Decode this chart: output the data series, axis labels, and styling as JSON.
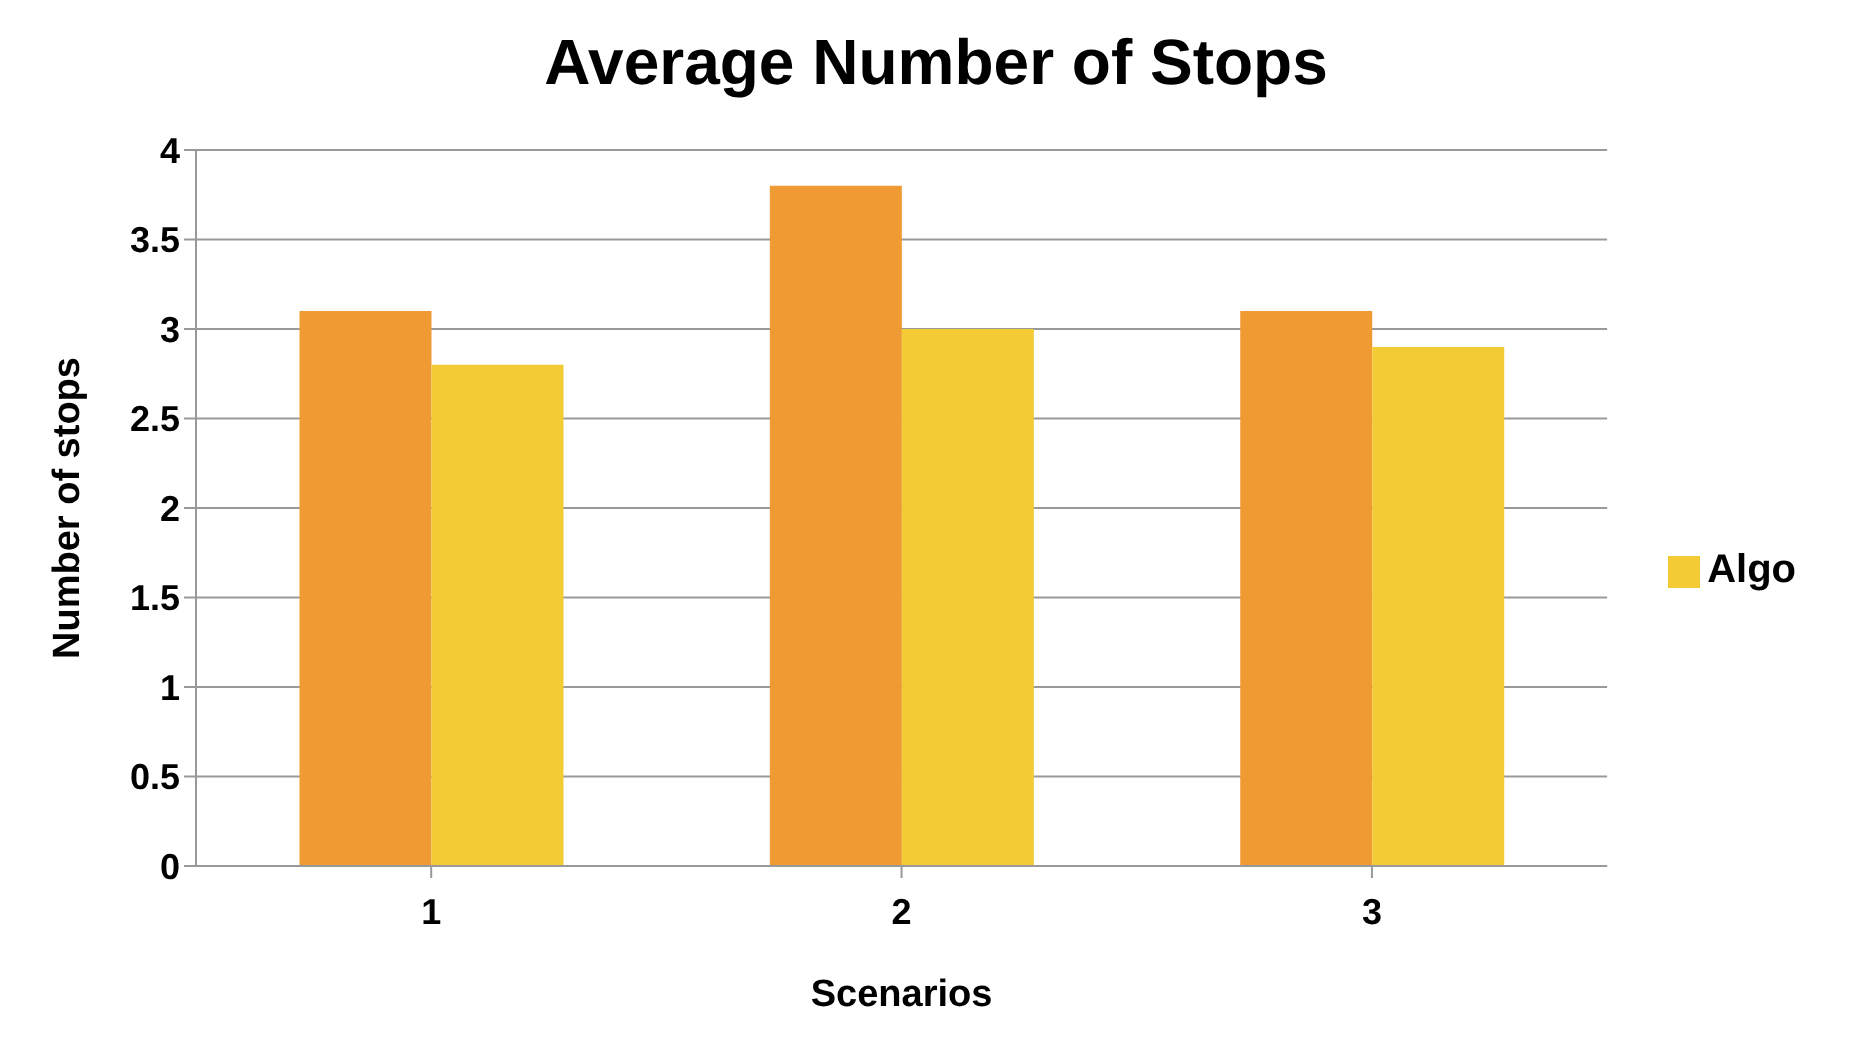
{
  "chart_data": {
    "type": "bar",
    "title": "Average Number of Stops",
    "xlabel": "Scenarios",
    "ylabel": "Number of stops",
    "categories": [
      "1",
      "2",
      "3"
    ],
    "series": [
      {
        "color": "#f09a33",
        "values": [
          3.1,
          3.8,
          3.1
        ]
      },
      {
        "name": "Algo",
        "color": "#f2cb35",
        "values": [
          2.8,
          3.0,
          2.9
        ]
      }
    ],
    "ylim": [
      0,
      4
    ],
    "yticks": [
      0,
      0.5,
      1,
      1.5,
      2,
      2.5,
      3,
      3.5,
      4
    ],
    "grid": "y",
    "legend": "right"
  }
}
